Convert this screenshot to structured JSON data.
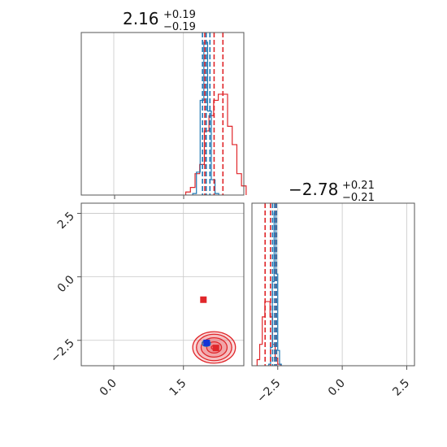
{
  "colors": {
    "red": "#e0262a",
    "blue": "#1f77b4",
    "blue_marker": "#1433d6",
    "grid": "#c8c8c8",
    "frame": "#555555"
  },
  "chart_data": [
    {
      "type": "histogram",
      "panel": "top-left (parameter 1 marginal)",
      "title": {
        "value": "2.16",
        "plus": "+0.19",
        "minus": "−0.19"
      },
      "xlim": [
        -0.7,
        2.8
      ],
      "grid": true,
      "series": [
        {
          "color": "red",
          "bins": [
            1.55,
            1.65,
            1.75,
            1.85,
            1.95,
            2.05,
            2.15,
            2.25,
            2.35,
            2.45,
            2.55,
            2.65,
            2.75,
            2.85
          ],
          "heights": [
            0.02,
            0.05,
            0.14,
            0.2,
            0.42,
            0.52,
            0.62,
            0.66,
            0.66,
            0.45,
            0.33,
            0.14,
            0.06
          ]
        },
        {
          "color": "blue",
          "bins": [
            1.7,
            1.78,
            1.86,
            1.94,
            2.02,
            2.1,
            2.18,
            2.26
          ],
          "heights": [
            0.01,
            0.15,
            0.62,
            1.0,
            0.55,
            0.1,
            0.01
          ]
        }
      ],
      "quantile_lines": {
        "red": [
          1.96,
          2.16,
          2.35
        ],
        "blue": [
          1.91,
          1.99,
          2.07
        ]
      }
    },
    {
      "type": "histogram",
      "panel": "bottom-right (parameter 2 marginal)",
      "title": {
        "value": "−2.78",
        "plus": "+0.21",
        "minus": "−0.21"
      },
      "xlim": [
        -3.5,
        2.8
      ],
      "xticks": [
        -2.5,
        0.0,
        2.5
      ],
      "xtick_labels": [
        "−2.5",
        "0.0",
        "2.5"
      ],
      "grid": true,
      "series": [
        {
          "color": "red",
          "bins": [
            -3.3,
            -3.2,
            -3.1,
            -3.0,
            -2.9,
            -2.8,
            -2.7,
            -2.6,
            -2.5,
            -2.4
          ],
          "heights": [
            0.04,
            0.14,
            0.32,
            0.42,
            0.42,
            0.32,
            0.14,
            0.05,
            0.01
          ]
        },
        {
          "color": "blue",
          "bins": [
            -2.85,
            -2.78,
            -2.71,
            -2.64,
            -2.57,
            -2.5,
            -2.43,
            -2.36
          ],
          "heights": [
            0.01,
            0.12,
            0.55,
            1.0,
            0.6,
            0.1,
            0.01
          ]
        }
      ],
      "quantile_lines": {
        "red": [
          -2.99,
          -2.78,
          -2.57
        ],
        "blue": [
          -2.7,
          -2.62,
          -2.55
        ]
      }
    },
    {
      "type": "scatter",
      "panel": "bottom-left (2D joint)",
      "xlim": [
        -0.7,
        2.8
      ],
      "ylim": [
        -3.5,
        2.9
      ],
      "xticks": [
        0.0,
        1.5
      ],
      "xtick_labels": [
        "0.0",
        "1.5"
      ],
      "yticks": [
        -2.5,
        0.0,
        2.5
      ],
      "ytick_labels": [
        "−2.5",
        "0.0",
        "2.5"
      ],
      "grid": true,
      "reference_hline": 2.5,
      "contours": [
        {
          "color": "red",
          "cx": 2.16,
          "cy": -2.78,
          "rx": [
            0.06,
            0.16,
            0.28,
            0.38,
            0.46
          ],
          "ry": [
            0.08,
            0.22,
            0.38,
            0.52,
            0.62
          ]
        },
        {
          "color": "blue",
          "cx": 1.99,
          "cy": -2.62,
          "rx": [
            0.05,
            0.09
          ],
          "ry": [
            0.06,
            0.12
          ]
        }
      ],
      "markers": [
        {
          "color": "red",
          "x": 1.93,
          "y": -0.9
        },
        {
          "color": "red",
          "x": 2.2,
          "y": -2.8
        },
        {
          "color": "blue_marker",
          "x": 2.0,
          "y": -2.6
        }
      ]
    }
  ]
}
